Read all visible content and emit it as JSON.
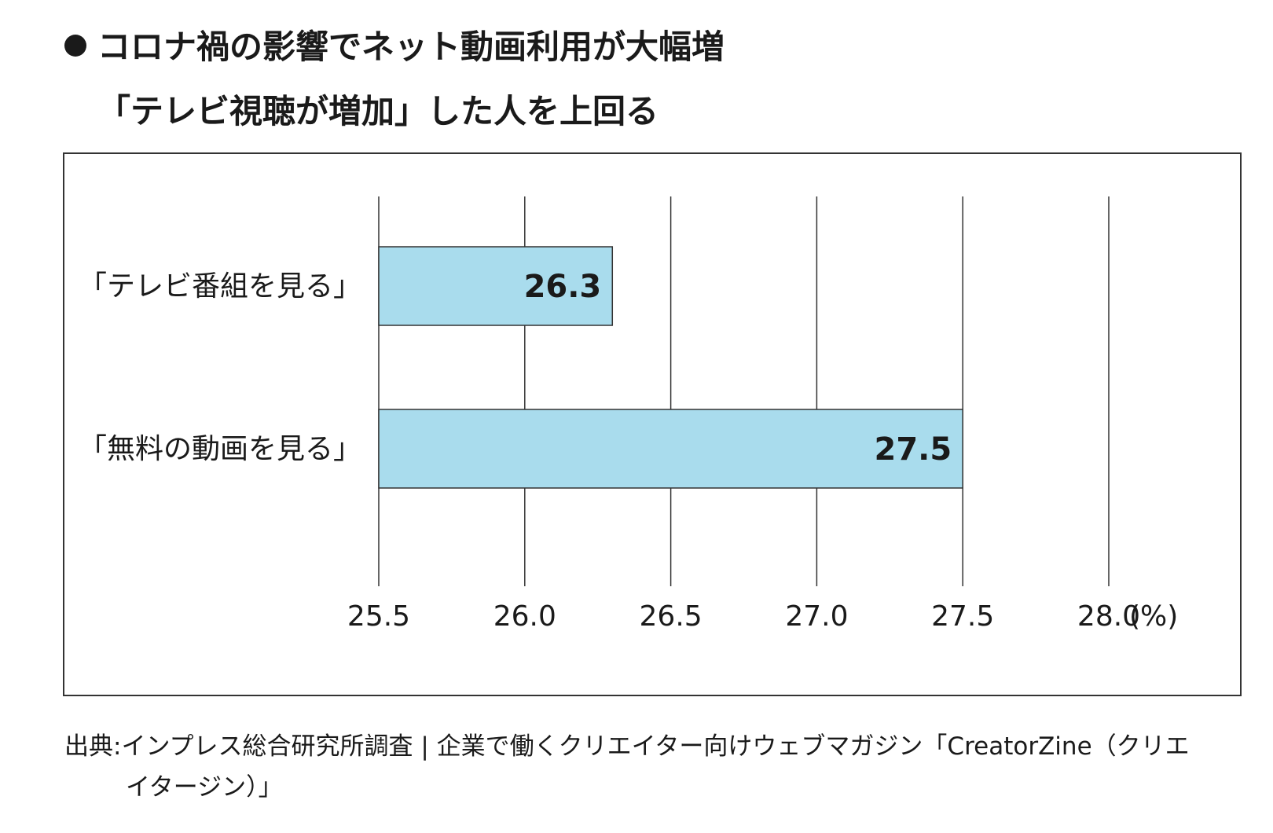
{
  "title": {
    "line1": "コロナ禍の影響でネット動画利用が大幅増",
    "line2": "「テレビ視聴が増加」した人を上回る"
  },
  "source": {
    "line1": "出典:インプレス総合研究所調査 | 企業で働くクリエイター向けウェブマガジン「CreatorZine（クリエ",
    "line2": "イタージン）」"
  },
  "chart_data": {
    "type": "bar",
    "orientation": "horizontal",
    "categories": [
      "「テレビ番組を見る」",
      "「無料の動画を見る」"
    ],
    "values": [
      26.3,
      27.5
    ],
    "data_labels": [
      "26.3",
      "27.5"
    ],
    "xlim": [
      25.5,
      28.0
    ],
    "ticks": [
      "25.5",
      "26.0",
      "26.5",
      "27.0",
      "27.5",
      "28.0"
    ],
    "unit": "(%)",
    "grid": "vertical",
    "bar_color": "#a9dced"
  }
}
